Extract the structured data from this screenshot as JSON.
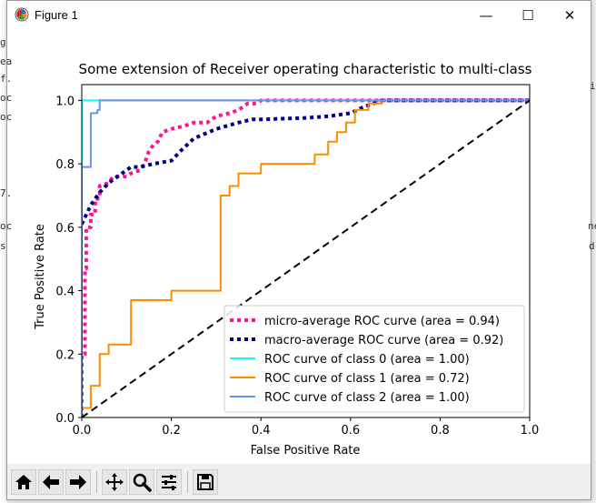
{
  "window": {
    "title": "Figure 1",
    "controls": {
      "minimize": "—",
      "maximize": "☐",
      "close": "✕"
    }
  },
  "background": {
    "fragments": [
      "g",
      "ea",
      "f.",
      "oc",
      "oc",
      "7.",
      "oc",
      "s",
      "ne",
      "d",
      "i"
    ]
  },
  "toolbar": {
    "buttons": [
      {
        "name": "home",
        "icon": "home-icon",
        "tooltip": "Reset original view"
      },
      {
        "name": "back",
        "icon": "arrow-left-icon",
        "tooltip": "Back to previous view"
      },
      {
        "name": "forward",
        "icon": "arrow-right-icon",
        "tooltip": "Forward to next view"
      },
      {
        "name": "pan",
        "icon": "move-icon",
        "tooltip": "Pan axes"
      },
      {
        "name": "zoom",
        "icon": "zoom-icon",
        "tooltip": "Zoom to rectangle"
      },
      {
        "name": "configure",
        "icon": "sliders-icon",
        "tooltip": "Configure subplots"
      },
      {
        "name": "save",
        "icon": "save-icon",
        "tooltip": "Save the figure"
      }
    ]
  },
  "colors": {
    "micro": "#ff1493",
    "macro": "#000080",
    "class0": "#00ffff",
    "class1": "#ff8c00",
    "class2": "#6495ed",
    "diagonal": "#000000"
  },
  "chart_data": {
    "type": "line",
    "title": "Some extension of Receiver operating characteristic to multi-class",
    "xlabel": "False Positive Rate",
    "ylabel": "True Positive Rate",
    "xlim": [
      0.0,
      1.0
    ],
    "ylim": [
      0.0,
      1.05
    ],
    "xticks": [
      "0.0",
      "0.2",
      "0.4",
      "0.6",
      "0.8",
      "1.0"
    ],
    "yticks": [
      "0.0",
      "0.2",
      "0.4",
      "0.6",
      "0.8",
      "1.0"
    ],
    "legend_position": "lower-right",
    "series": [
      {
        "name": "micro-average ROC curve (area = 0.94)",
        "color": "#ff1493",
        "style": "dotted",
        "width": 4,
        "x": [
          0.0,
          0.0,
          0.007,
          0.007,
          0.01,
          0.01,
          0.02,
          0.02,
          0.03,
          0.03,
          0.04,
          0.04,
          0.06,
          0.07,
          0.1,
          0.11,
          0.13,
          0.14,
          0.15,
          0.16,
          0.17,
          0.18,
          0.2,
          0.23,
          0.25,
          0.28,
          0.3,
          0.33,
          0.35,
          0.37,
          0.39,
          0.4,
          0.5,
          0.6,
          0.7,
          1.0
        ],
        "y": [
          0.0,
          0.2,
          0.2,
          0.47,
          0.47,
          0.6,
          0.6,
          0.64,
          0.64,
          0.69,
          0.69,
          0.73,
          0.74,
          0.76,
          0.76,
          0.77,
          0.78,
          0.8,
          0.84,
          0.86,
          0.87,
          0.9,
          0.91,
          0.92,
          0.93,
          0.93,
          0.95,
          0.96,
          0.97,
          0.99,
          0.99,
          1.0,
          1.0,
          1.0,
          1.0,
          1.0
        ]
      },
      {
        "name": "macro-average ROC curve (area = 0.92)",
        "color": "#000080",
        "style": "dotted",
        "width": 4,
        "x": [
          0.0,
          0.02,
          0.04,
          0.06,
          0.08,
          0.1,
          0.11,
          0.13,
          0.16,
          0.2,
          0.22,
          0.25,
          0.3,
          0.35,
          0.38,
          0.4,
          0.5,
          0.55,
          0.6,
          0.63,
          0.65,
          0.67,
          1.0
        ],
        "y": [
          0.61,
          0.67,
          0.71,
          0.74,
          0.76,
          0.78,
          0.79,
          0.79,
          0.8,
          0.81,
          0.84,
          0.88,
          0.91,
          0.93,
          0.94,
          0.94,
          0.945,
          0.95,
          0.96,
          0.98,
          0.99,
          1.0,
          1.0
        ]
      },
      {
        "name": "ROC curve of class 0 (area = 1.00)",
        "color": "#00ffff",
        "style": "solid",
        "width": 2,
        "x": [
          0.0,
          0.0,
          0.03,
          1.0
        ],
        "y": [
          0.0,
          1.0,
          1.0,
          1.0
        ]
      },
      {
        "name": "ROC curve of class 1 (area = 0.72)",
        "color": "#ff8c00",
        "style": "solid",
        "width": 2,
        "x": [
          0.0,
          0.02,
          0.02,
          0.04,
          0.04,
          0.06,
          0.06,
          0.11,
          0.11,
          0.2,
          0.2,
          0.31,
          0.31,
          0.33,
          0.33,
          0.35,
          0.35,
          0.4,
          0.4,
          0.52,
          0.52,
          0.55,
          0.55,
          0.57,
          0.57,
          0.59,
          0.59,
          0.61,
          0.61,
          0.64,
          0.64,
          0.67,
          0.67,
          1.0
        ],
        "y": [
          0.03,
          0.03,
          0.1,
          0.1,
          0.2,
          0.2,
          0.23,
          0.23,
          0.37,
          0.37,
          0.4,
          0.4,
          0.7,
          0.7,
          0.73,
          0.73,
          0.77,
          0.77,
          0.8,
          0.8,
          0.83,
          0.83,
          0.87,
          0.87,
          0.9,
          0.9,
          0.93,
          0.93,
          0.97,
          0.97,
          0.99,
          0.99,
          1.0,
          1.0
        ]
      },
      {
        "name": "ROC curve of class 2 (area = 1.00)",
        "color": "#6495ed",
        "style": "solid",
        "width": 2,
        "x": [
          0.0,
          0.0,
          0.02,
          0.02,
          0.035,
          0.035,
          0.04,
          0.04,
          1.0
        ],
        "y": [
          0.0,
          0.79,
          0.79,
          0.96,
          0.96,
          0.97,
          0.97,
          1.0,
          1.0
        ]
      },
      {
        "name": "chance",
        "color": "#000000",
        "style": "dashed",
        "width": 2,
        "legend": false,
        "x": [
          0.0,
          1.0
        ],
        "y": [
          0.0,
          1.0
        ]
      }
    ]
  }
}
